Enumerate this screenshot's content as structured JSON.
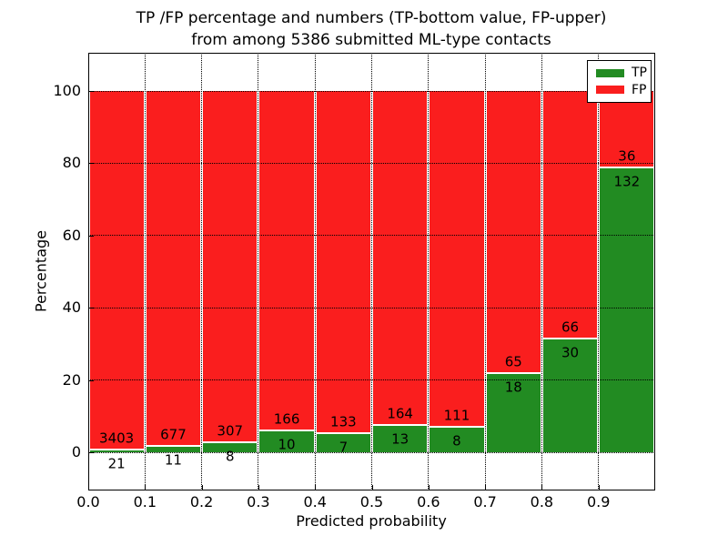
{
  "figure": {
    "title_line1": "TP /FP percentage and numbers (TP-bottom value, FP-upper)",
    "title_line2": "from among 5386 submitted ML-type contacts",
    "xlabel": "Predicted probability",
    "ylabel": "Percentage"
  },
  "legend": {
    "position": "upper right",
    "entries": [
      {
        "label": "TP",
        "color": "#228b22"
      },
      {
        "label": "FP",
        "color": "#fa1e1e"
      }
    ]
  },
  "chart_data": {
    "type": "bar",
    "stacked": true,
    "normalized": "each bar scaled to 100%",
    "title": "TP /FP percentage and numbers (TP-bottom value, FP-upper) from among 5386 submitted ML-type contacts",
    "xlabel": "Predicted probability",
    "ylabel": "Percentage",
    "total_contacts": 5386,
    "x_tick_labels": [
      "0.0",
      "0.1",
      "0.2",
      "0.3",
      "0.4",
      "0.5",
      "0.6",
      "0.7",
      "0.8",
      "0.9"
    ],
    "y_tick_values": [
      0,
      20,
      40,
      60,
      80,
      100
    ],
    "y_tick_labels": [
      "0",
      "20",
      "40",
      "60",
      "80",
      "100"
    ],
    "xlim": [
      0.0,
      1.0
    ],
    "ylim": [
      0,
      100
    ],
    "bin_edges": [
      0.0,
      0.1,
      0.2,
      0.3,
      0.4,
      0.5,
      0.6,
      0.7,
      0.8,
      0.9,
      1.0
    ],
    "grid": "dotted, drawn over bars",
    "legend_position": "upper right",
    "series": [
      {
        "name": "TP",
        "color": "#228b22",
        "values": [
          21,
          11,
          8,
          10,
          7,
          13,
          8,
          18,
          30,
          132
        ]
      },
      {
        "name": "FP",
        "color": "#fa1e1e",
        "values": [
          3403,
          677,
          307,
          166,
          133,
          164,
          111,
          65,
          66,
          36
        ]
      }
    ],
    "tp_percent_per_bin": [
      0.61,
      1.6,
      2.54,
      5.68,
      5.0,
      7.34,
      6.72,
      21.69,
      31.25,
      78.57
    ]
  }
}
